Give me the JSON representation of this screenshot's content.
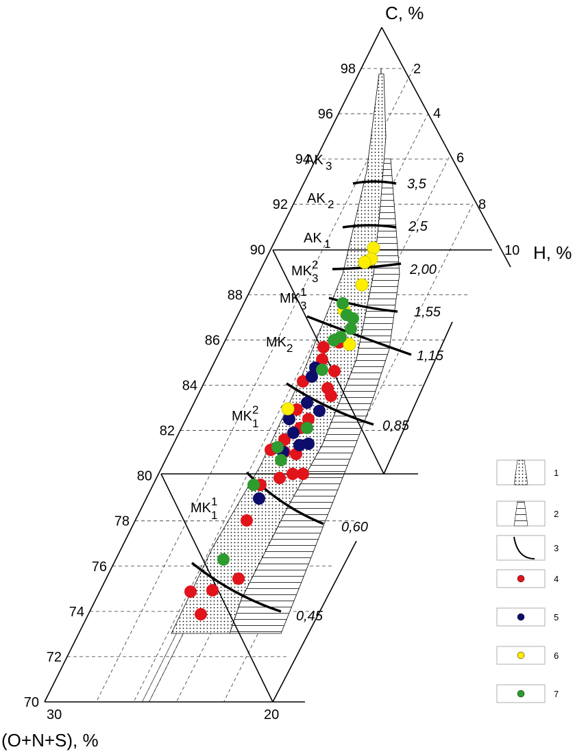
{
  "axes": {
    "c_label": "C, %",
    "h_label": "H, %",
    "onS_label": "(O+N+S), %",
    "c_ticks": [
      "98",
      "96",
      "94",
      "92",
      "90",
      "88",
      "86",
      "84",
      "82",
      "80",
      "78",
      "76",
      "74",
      "72",
      "70"
    ],
    "h_ticks": [
      "2",
      "4",
      "6",
      "8",
      "10"
    ],
    "onS_ticks": [
      "30",
      "20"
    ]
  },
  "zones": [
    {
      "main": "AK",
      "sub": "3"
    },
    {
      "main": "AK",
      "sub": "2"
    },
    {
      "main": "AK",
      "sub": "1"
    },
    {
      "main": "MK",
      "sup": "2",
      "sub": "3"
    },
    {
      "main": "MK",
      "sup": "1",
      "sub": "3"
    },
    {
      "main": "MK",
      "sub": "2"
    },
    {
      "main": "MK",
      "sup": "2",
      "sub": "1"
    },
    {
      "main": "MK",
      "sup": "1",
      "sub": "1"
    }
  ],
  "reflectance": [
    "3,5",
    "2,5",
    "2,00",
    "1,55",
    "1,15",
    "0,85",
    "0,60",
    "0,45"
  ],
  "legend": [
    "1",
    "2",
    "3",
    "4",
    "5",
    "6",
    "7"
  ]
}
